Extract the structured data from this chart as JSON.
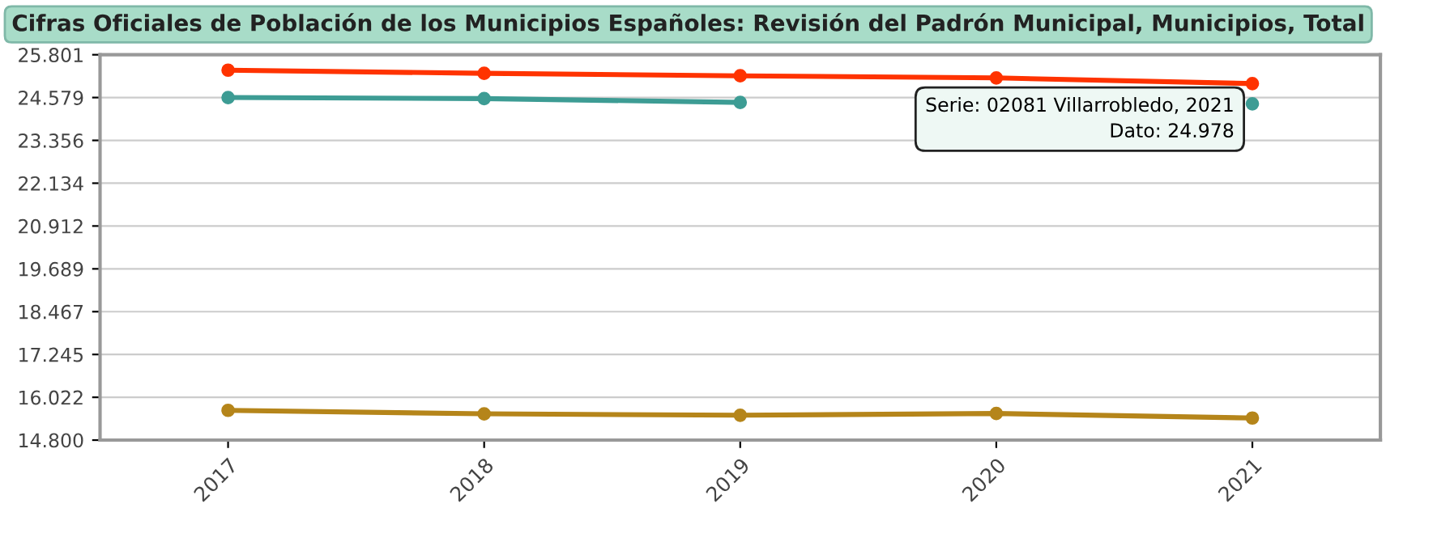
{
  "chart_data": {
    "type": "line",
    "title": "Cifras Oficiales de Población de los Municipios Españoles: Revisión del Padrón Municipal, Municipios, Total",
    "categories": [
      "2017",
      "2018",
      "2019",
      "2020",
      "2021"
    ],
    "series": [
      {
        "color": "#ff3300",
        "values": [
          25360,
          25270,
          25200,
          25140,
          24978
        ]
      },
      {
        "color": "#3d9c94",
        "values": [
          24580,
          24550,
          24440,
          null,
          24400
        ]
      },
      {
        "color": "#b5851a",
        "values": [
          15650,
          15550,
          15510,
          15560,
          15430
        ]
      }
    ],
    "ylim": [
      14800,
      25801
    ],
    "yticks": [
      {
        "value": 14800,
        "label": "14.800"
      },
      {
        "value": 16022,
        "label": "16.022"
      },
      {
        "value": 17245,
        "label": "17.245"
      },
      {
        "value": 18467,
        "label": "18.467"
      },
      {
        "value": 19689,
        "label": "19.689"
      },
      {
        "value": 20912,
        "label": "20.912"
      },
      {
        "value": 22134,
        "label": "22.134"
      },
      {
        "value": 23356,
        "label": "23.356"
      },
      {
        "value": 24579,
        "label": "24.579"
      },
      {
        "value": 25801,
        "label": "25.801"
      }
    ],
    "grid": "y",
    "marker": "circle",
    "line_style": "solid",
    "legend": false,
    "annotations": [
      {
        "text": "Serie: 02081 Villarrobledo, 2021\nDato: 24.978",
        "x": "2021",
        "y": 24978
      }
    ]
  }
}
